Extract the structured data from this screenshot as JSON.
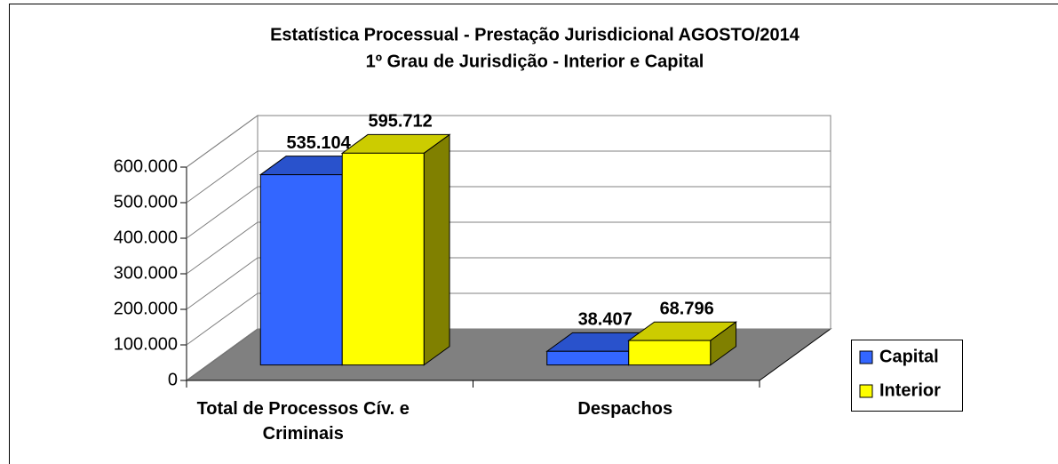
{
  "chart_data": {
    "type": "bar3d",
    "title": "Estatística Processual - Prestação Jurisdicional AGOSTO/2014",
    "subtitle": "1º Grau de Jurisdição - Interior e Capital",
    "categories": [
      "Total de Processos Cív. e Criminais",
      "Despachos"
    ],
    "series": [
      {
        "name": "Capital",
        "color": "#3366ff",
        "values": [
          535104,
          38407
        ],
        "value_labels": [
          "535.104",
          "38.407"
        ]
      },
      {
        "name": "Interior",
        "color": "#ffff00",
        "values": [
          595712,
          68796
        ],
        "value_labels": [
          "595.712",
          "68.796"
        ]
      }
    ],
    "ylim": [
      0,
      600000
    ],
    "yticks": [
      0,
      {
        "value": 100000,
        "label": "100.000"
      },
      {
        "value": 200000,
        "label": "200.000"
      },
      {
        "value": 300000,
        "label": "300.000"
      },
      {
        "value": 400000,
        "label": "400.000"
      },
      {
        "value": 500000,
        "label": "500.000"
      },
      {
        "value": 600000,
        "label": "600.000"
      }
    ],
    "grid": true,
    "legend": "right"
  }
}
